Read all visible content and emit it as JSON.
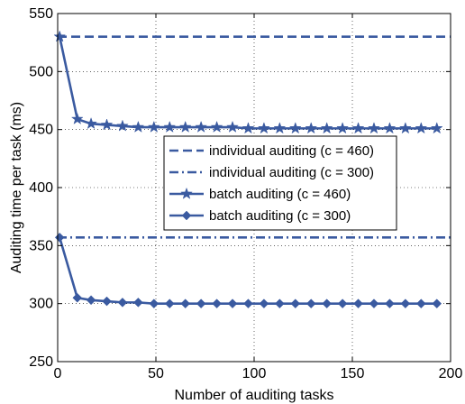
{
  "chart_data": {
    "type": "line",
    "title": "",
    "xlabel": "Number of auditing tasks",
    "ylabel": "Auditing time per task (ms)",
    "xlim": [
      0,
      200
    ],
    "ylim": [
      250,
      550
    ],
    "xticks": [
      "0",
      "50",
      "100",
      "150",
      "200"
    ],
    "yticks": [
      "250",
      "300",
      "350",
      "400",
      "450",
      "500",
      "550"
    ],
    "grid": true,
    "legend_position": "center-right",
    "line_color": "#3a5aa0",
    "x": [
      1,
      10,
      17,
      25,
      33,
      41,
      49,
      57,
      65,
      73,
      81,
      89,
      97,
      105,
      113,
      121,
      129,
      137,
      145,
      153,
      161,
      169,
      177,
      185,
      193
    ],
    "series": [
      {
        "name": "individual auditing (c = 460)",
        "style": "dashed",
        "marker": "none",
        "values": [
          530,
          530,
          530,
          530,
          530,
          530,
          530,
          530,
          530,
          530,
          530,
          530,
          530,
          530,
          530,
          530,
          530,
          530,
          530,
          530,
          530,
          530,
          530,
          530,
          530
        ]
      },
      {
        "name": "individual auditing (c = 300)",
        "style": "dashdot",
        "marker": "none",
        "values": [
          357,
          357,
          357,
          357,
          357,
          357,
          357,
          357,
          357,
          357,
          357,
          357,
          357,
          357,
          357,
          357,
          357,
          357,
          357,
          357,
          357,
          357,
          357,
          357,
          357
        ]
      },
      {
        "name": "batch auditing (c = 460)",
        "style": "solid",
        "marker": "star",
        "values": [
          530,
          459,
          455,
          454,
          453,
          452,
          452,
          452,
          452,
          452,
          452,
          452,
          451,
          451,
          451,
          451,
          451,
          451,
          451,
          451,
          451,
          451,
          451,
          451,
          451
        ]
      },
      {
        "name": "batch auditing (c = 300)",
        "style": "solid",
        "marker": "diamond",
        "values": [
          357,
          305,
          303,
          302,
          301,
          301,
          300,
          300,
          300,
          300,
          300,
          300,
          300,
          300,
          300,
          300,
          300,
          300,
          300,
          300,
          300,
          300,
          300,
          300,
          300
        ]
      }
    ]
  }
}
